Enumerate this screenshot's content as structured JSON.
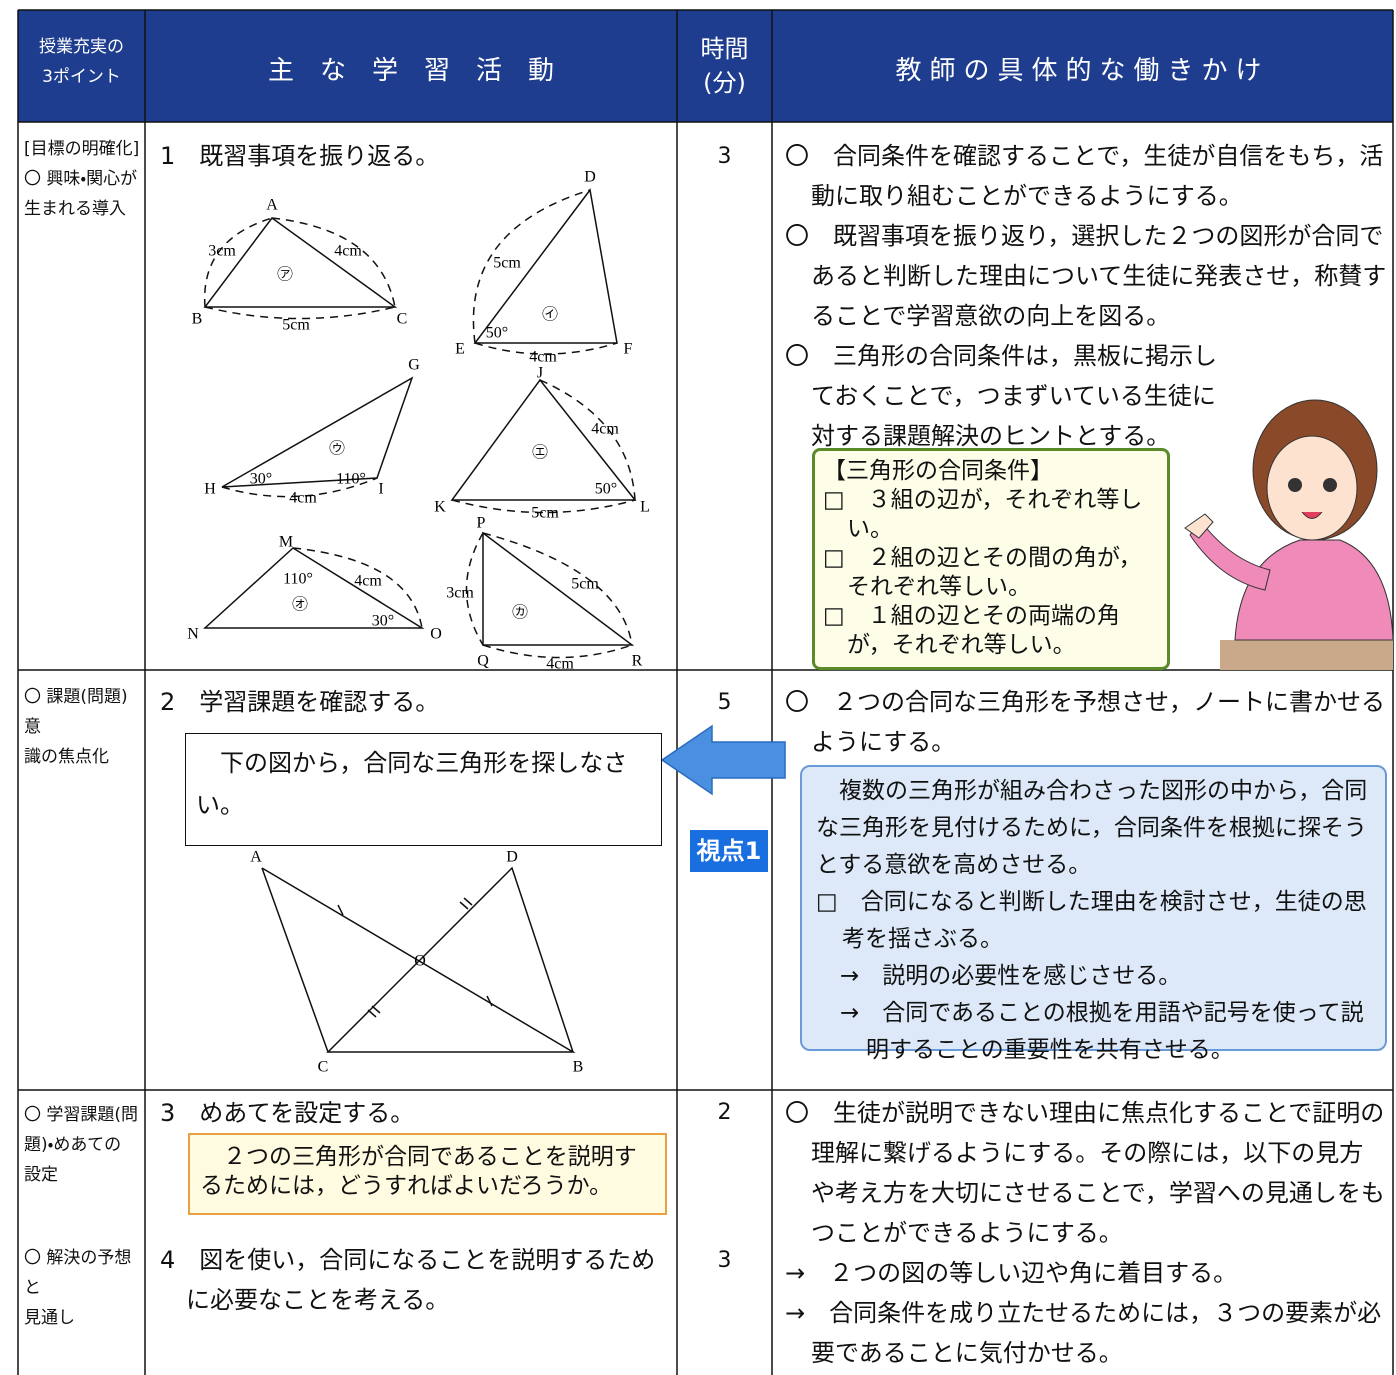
{
  "header": {
    "points": [
      "授業充実の",
      "3ポイント"
    ],
    "activities": "主　な　学　習　活　動",
    "time": [
      "時間",
      "(分)"
    ],
    "teacher": "教師の具体的な働きかけ"
  },
  "rows": [
    {
      "points": [
        "[目標の明確化]",
        "〇 興味・関心が",
        "生まれる導入"
      ],
      "activity": "1　既習事項を振り返る。",
      "time": "3",
      "teacher": [
        "〇　合同条件を確認することで，生徒が自信をもち，活動に取り組むことができるようにする。",
        "〇　既習事項を振り返り，選択した２つの図形が合同であると判断した理由について生徒に発表させ，称賛することで学習意欲の向上を図る。",
        "〇　三角形の合同条件は，黒板に掲示しておくことで，つまずいている生徒に対する課題解決のヒントとする。"
      ],
      "conditions": {
        "title": "【三角形の合同条件】",
        "items": [
          "□　３組の辺が，それぞれ等しい。",
          "□　２組の辺とその間の角が，それぞれ等しい。",
          "□　１組の辺とその両端の角が，それぞれ等しい。"
        ]
      },
      "figures": [
        [
          "A",
          "B",
          "C",
          "3cm",
          "4cm",
          "5cm",
          "㋐"
        ],
        [
          "D",
          "E",
          "F",
          "5cm",
          "㋑",
          "50°",
          "4cm"
        ],
        [
          "G",
          "H",
          "I",
          "30°",
          "110°",
          "4cm",
          "㋒"
        ],
        [
          "J",
          "K",
          "L",
          "4cm",
          "㋓",
          "50°",
          "5cm"
        ],
        [
          "M",
          "N",
          "O",
          "110°",
          "4cm",
          "㋔",
          "30°"
        ],
        [
          "P",
          "Q",
          "R",
          "3cm",
          "5cm",
          "㋕",
          "4cm"
        ]
      ]
    },
    {
      "points": [
        "〇 課題(問題)意",
        "識の焦点化"
      ],
      "activity": "2　学習課題を確認する。",
      "task": "　下の図から，合同な三角形を探しなさい。",
      "figure": [
        "A",
        "D",
        "O",
        "C",
        "B"
      ],
      "time": "5",
      "teacher": [
        "〇　２つの合同な三角形を予想させ，ノートに書かせるようにする。"
      ],
      "badge": "視点1",
      "callout": [
        "　複数の三角形が組み合わさった図形の中から，合同な三角形を見付けるために，合同条件を根拠に探そうとする意欲を高めさせる。",
        "□　合同になると判断した理由を検討させ，生徒の思考を揺さぶる。",
        "→　説明の必要性を感じさせる。",
        "→　合同であることの根拠を用語や記号を使って説明することの重要性を共有させる。"
      ]
    },
    {
      "points": [
        "〇 学習課題(問",
        "題)・めあての",
        "設定"
      ],
      "activity": "3　めあてを設定する。",
      "goal": "　２つの三角形が合同であることを説明するためには，どうすればよいだろうか。",
      "time": "2",
      "teacher": [
        "〇　生徒が説明できない理由に焦点化することで証明の理解に繋げるようにする。その際には，以下の見方や考え方を大切にさせることで，学習への見通しをもつことができるようにする。",
        "→　２つの図の等しい辺や角に着目する。",
        "→　合同条件を成り立たせるためには，３つの要素が必要であることに気付かせる。"
      ]
    },
    {
      "points": [
        "〇 解決の予想と",
        "見通し"
      ],
      "activity": "4　図を使い，合同になることを説明するために必要なことを考える。",
      "time": "3"
    }
  ]
}
